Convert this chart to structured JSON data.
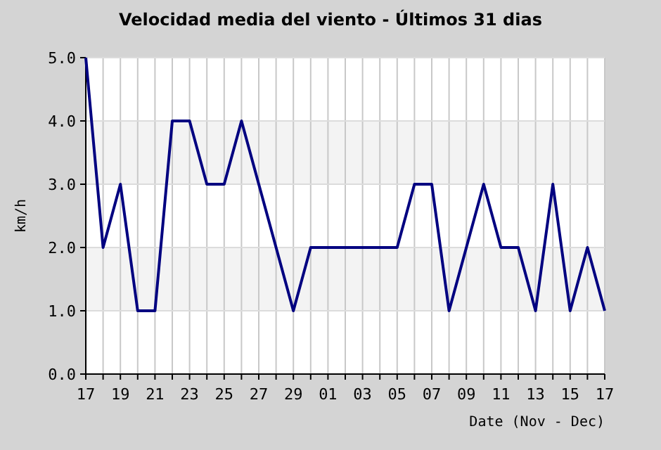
{
  "chart_data": {
    "type": "line",
    "title": "Velocidad media del viento - Últimos 31 dias",
    "xlabel": "Date (Nov - Dec)",
    "ylabel": "km/h",
    "categories": [
      "17",
      null,
      "19",
      null,
      "21",
      null,
      "23",
      null,
      "25",
      null,
      "27",
      null,
      "29",
      null,
      "01",
      null,
      "03",
      null,
      "05",
      null,
      "07",
      null,
      "09",
      null,
      "11",
      null,
      "13",
      null,
      "15",
      null,
      "17"
    ],
    "series": [
      {
        "color": "#000080",
        "values": [
          5,
          2,
          3,
          1,
          1,
          4,
          4,
          3,
          3,
          4,
          3,
          2,
          1,
          2,
          2,
          2,
          2,
          2,
          2,
          3,
          3,
          1,
          2,
          3,
          2,
          2,
          1,
          3,
          1,
          2,
          1
        ]
      }
    ],
    "ylim": [
      0,
      5
    ],
    "yticks": [
      {
        "value": 0,
        "label": "0.0"
      },
      {
        "value": 1,
        "label": "1.0"
      },
      {
        "value": 2,
        "label": "2.0"
      },
      {
        "value": 3,
        "label": "3.0"
      },
      {
        "value": 4,
        "label": "4.0"
      },
      {
        "value": 5,
        "label": "5.0"
      }
    ],
    "grid": true,
    "marker": "none",
    "line_style": "solid"
  }
}
